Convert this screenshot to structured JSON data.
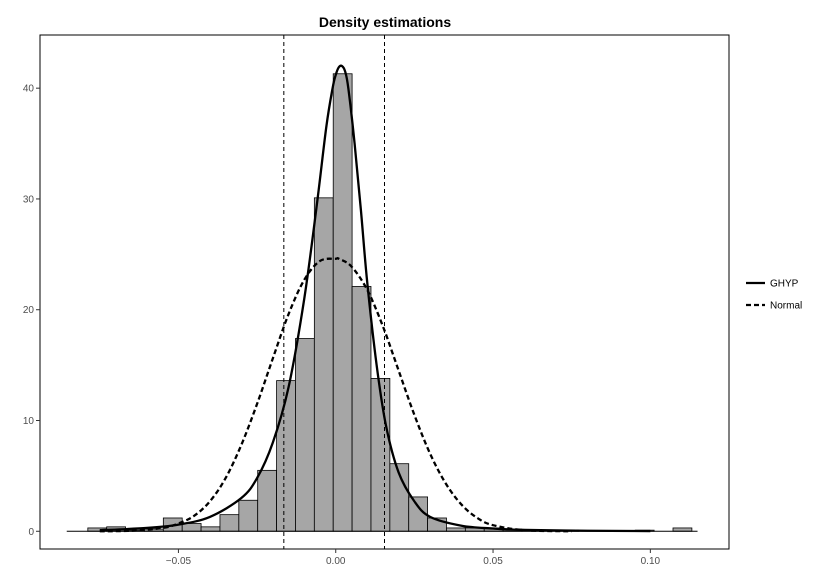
{
  "chart_data": {
    "type": "histogram",
    "title": "Density estimations",
    "xlabel": "",
    "ylabel": "",
    "xlim": [
      -0.094,
      0.125
    ],
    "ylim": [
      -1.6,
      44.8
    ],
    "xticks": [
      -0.05,
      0.0,
      0.05,
      0.1
    ],
    "xtick_labels": [
      "-0.05",
      "0.00",
      "0.05",
      "0.10"
    ],
    "yticks": [
      0,
      10,
      20,
      30,
      40
    ],
    "ytick_labels": [
      "0",
      "10",
      "20",
      "30",
      "40"
    ],
    "grid": false,
    "legend_position": "right",
    "bin_width": 0.006,
    "bins": [
      {
        "x0": -0.0788,
        "x1": -0.0728,
        "y": 0.3
      },
      {
        "x0": -0.0728,
        "x1": -0.0668,
        "y": 0.4
      },
      {
        "x0": -0.0668,
        "x1": -0.0608,
        "y": 0.1
      },
      {
        "x0": -0.0608,
        "x1": -0.0548,
        "y": 0.2
      },
      {
        "x0": -0.0548,
        "x1": -0.0488,
        "y": 1.2
      },
      {
        "x0": -0.0488,
        "x1": -0.0428,
        "y": 0.7
      },
      {
        "x0": -0.0428,
        "x1": -0.0368,
        "y": 0.4
      },
      {
        "x0": -0.0368,
        "x1": -0.0308,
        "y": 1.5
      },
      {
        "x0": -0.0308,
        "x1": -0.0248,
        "y": 2.8
      },
      {
        "x0": -0.0248,
        "x1": -0.0188,
        "y": 5.5
      },
      {
        "x0": -0.0188,
        "x1": -0.0128,
        "y": 13.6
      },
      {
        "x0": -0.0128,
        "x1": -0.0068,
        "y": 17.4
      },
      {
        "x0": -0.0068,
        "x1": -0.0008,
        "y": 30.1
      },
      {
        "x0": -0.0008,
        "x1": 0.0052,
        "y": 41.3
      },
      {
        "x0": 0.0052,
        "x1": 0.0112,
        "y": 22.1
      },
      {
        "x0": 0.0112,
        "x1": 0.0172,
        "y": 13.8
      },
      {
        "x0": 0.0172,
        "x1": 0.0232,
        "y": 6.1
      },
      {
        "x0": 0.0232,
        "x1": 0.0292,
        "y": 3.1
      },
      {
        "x0": 0.0292,
        "x1": 0.0352,
        "y": 1.2
      },
      {
        "x0": 0.0352,
        "x1": 0.0412,
        "y": 0.3
      },
      {
        "x0": 0.0412,
        "x1": 0.0472,
        "y": 0.3
      },
      {
        "x0": 0.0472,
        "x1": 0.0532,
        "y": 0.3
      },
      {
        "x0": 0.0532,
        "x1": 0.0592,
        "y": 0.2
      },
      {
        "x0": 0.0592,
        "x1": 0.0652,
        "y": 0.1
      },
      {
        "x0": 0.0652,
        "x1": 0.0712,
        "y": 0.1
      },
      {
        "x0": 0.0712,
        "x1": 0.0772,
        "y": 0.1
      },
      {
        "x0": 0.0772,
        "x1": 0.0832,
        "y": 0.0
      },
      {
        "x0": 0.0832,
        "x1": 0.0892,
        "y": 0.0
      },
      {
        "x0": 0.0892,
        "x1": 0.0952,
        "y": 0.0
      },
      {
        "x0": 0.0952,
        "x1": 0.1012,
        "y": 0.1
      },
      {
        "x0": 0.1012,
        "x1": 0.1072,
        "y": 0.0
      },
      {
        "x0": 0.1072,
        "x1": 0.1132,
        "y": 0.3
      }
    ],
    "vlines": [
      -0.0165,
      0.0155
    ],
    "baseline": {
      "x0": -0.0855,
      "x1": 0.115,
      "y": 0
    },
    "series": [
      {
        "name": "GHYP",
        "style": "solid",
        "type": "density",
        "x": [
          -0.075,
          -0.06,
          -0.05,
          -0.04,
          -0.03,
          -0.025,
          -0.02,
          -0.015,
          -0.01,
          -0.006,
          -0.003,
          -0.001,
          0.0,
          0.001,
          0.002,
          0.003,
          0.004,
          0.006,
          0.008,
          0.01,
          0.013,
          0.016,
          0.02,
          0.025,
          0.03,
          0.04,
          0.05,
          0.06,
          0.08,
          0.1
        ],
        "y": [
          0.1,
          0.3,
          0.6,
          1.3,
          3.0,
          4.8,
          8.0,
          13.0,
          21.0,
          29.5,
          36.5,
          40.0,
          41.2,
          41.9,
          42.0,
          41.5,
          40.0,
          35.0,
          29.0,
          22.5,
          15.0,
          9.5,
          5.3,
          2.7,
          1.3,
          0.5,
          0.25,
          0.12,
          0.05,
          0.02
        ]
      },
      {
        "name": "Normal",
        "style": "dashed",
        "type": "density",
        "x": [
          -0.075,
          -0.065,
          -0.055,
          -0.05,
          -0.045,
          -0.04,
          -0.035,
          -0.03,
          -0.025,
          -0.02,
          -0.015,
          -0.01,
          -0.005,
          0.0,
          0.001,
          0.005,
          0.01,
          0.015,
          0.02,
          0.025,
          0.03,
          0.035,
          0.04,
          0.045,
          0.05,
          0.06,
          0.075
        ],
        "y": [
          0.0,
          0.05,
          0.3,
          0.7,
          1.4,
          2.7,
          4.8,
          7.8,
          11.5,
          15.6,
          19.6,
          22.7,
          24.4,
          24.6,
          24.6,
          23.9,
          21.8,
          18.5,
          14.5,
          10.5,
          7.0,
          4.3,
          2.4,
          1.2,
          0.55,
          0.1,
          0.0
        ]
      }
    ]
  }
}
